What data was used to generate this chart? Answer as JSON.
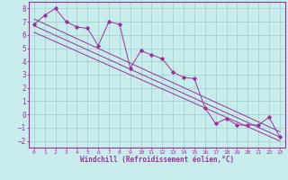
{
  "xlabel": "Windchill (Refroidissement éolien,°C)",
  "bg_color": "#c8ecec",
  "grid_color": "#a0cccc",
  "line_color": "#993399",
  "xlim": [
    -0.5,
    23.5
  ],
  "ylim": [
    -2.5,
    8.5
  ],
  "xticks": [
    0,
    1,
    2,
    3,
    4,
    5,
    6,
    7,
    8,
    9,
    10,
    11,
    12,
    13,
    14,
    15,
    16,
    17,
    18,
    19,
    20,
    21,
    22,
    23
  ],
  "yticks": [
    -2,
    -1,
    0,
    1,
    2,
    3,
    4,
    5,
    6,
    7,
    8
  ],
  "data_line": [
    [
      0,
      6.8
    ],
    [
      1,
      7.5
    ],
    [
      2,
      8.0
    ],
    [
      3,
      7.0
    ],
    [
      4,
      6.6
    ],
    [
      5,
      6.5
    ],
    [
      6,
      5.2
    ],
    [
      7,
      7.0
    ],
    [
      8,
      6.8
    ],
    [
      9,
      3.5
    ],
    [
      10,
      4.8
    ],
    [
      11,
      4.5
    ],
    [
      12,
      4.2
    ],
    [
      13,
      3.2
    ],
    [
      14,
      2.8
    ],
    [
      15,
      2.7
    ],
    [
      16,
      0.5
    ],
    [
      17,
      -0.7
    ],
    [
      18,
      -0.3
    ],
    [
      19,
      -0.8
    ],
    [
      20,
      -0.8
    ],
    [
      21,
      -0.8
    ],
    [
      22,
      -0.2
    ],
    [
      23,
      -1.7
    ]
  ],
  "trend_lines": [
    [
      [
        0,
        7.2
      ],
      [
        23,
        -1.3
      ]
    ],
    [
      [
        0,
        6.7
      ],
      [
        23,
        -1.7
      ]
    ],
    [
      [
        0,
        6.2
      ],
      [
        23,
        -2.0
      ]
    ]
  ]
}
